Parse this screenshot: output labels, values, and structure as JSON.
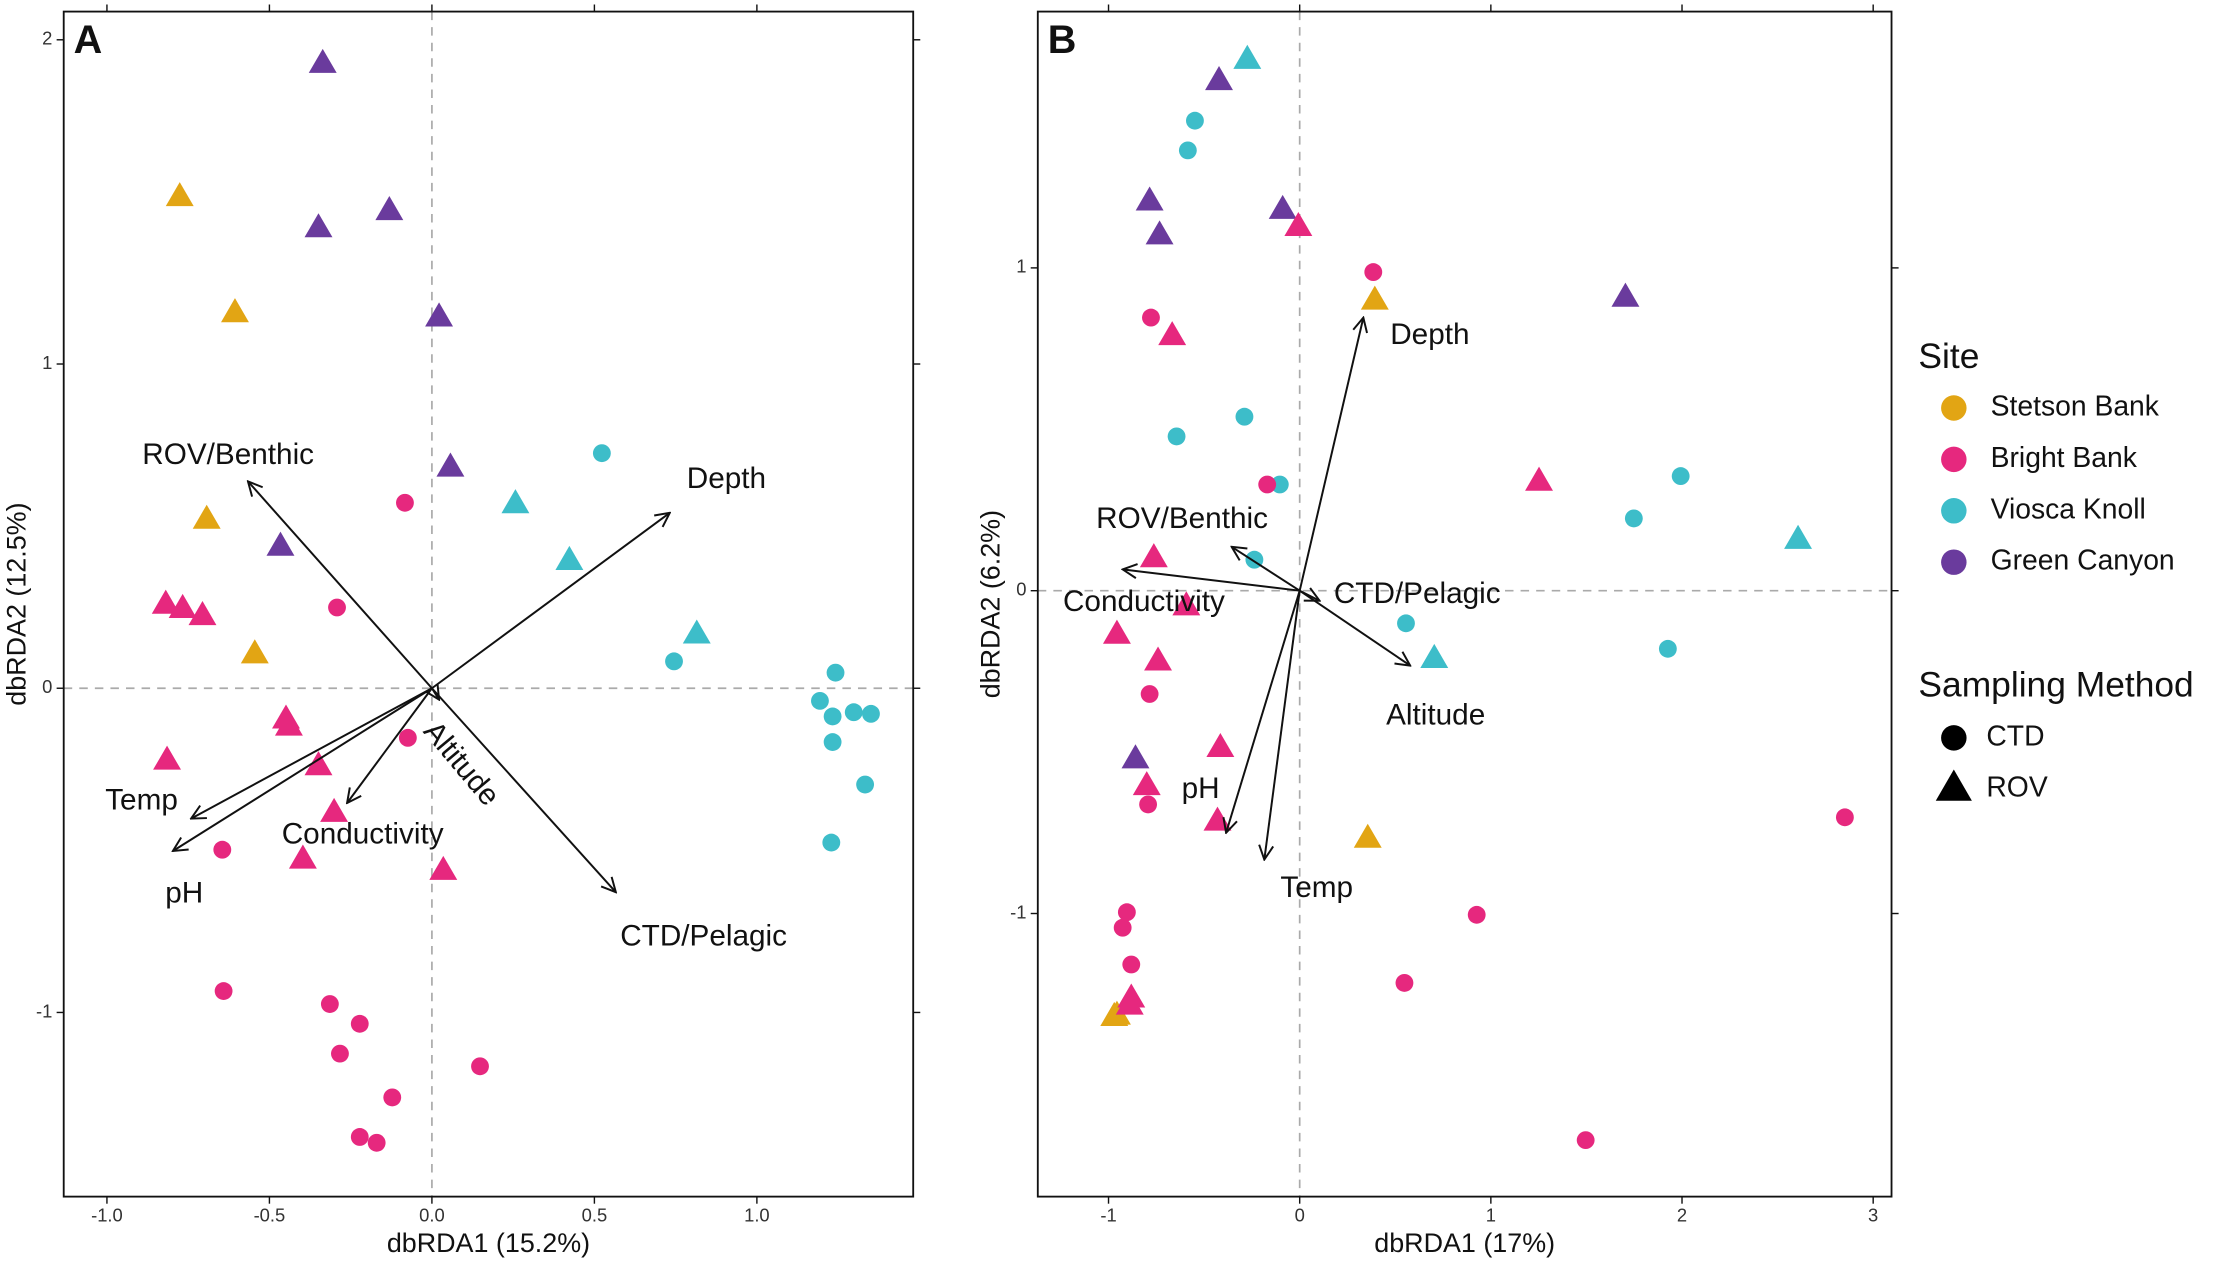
{
  "legend": {
    "title": "Site",
    "items": [
      "Stetson Bank",
      "Bright Bank",
      "Viosca Knoll",
      "Green Canyon"
    ],
    "colors": [
      "#e2a514",
      "#e6287e",
      "#3dbdc9",
      "#6a3b9d"
    ]
  },
  "shape_legend": {
    "title": "Sampling Method",
    "items": [
      "CTD",
      "ROV"
    ],
    "markers": [
      "circle",
      "triangle"
    ]
  },
  "chart_data": [
    {
      "type": "biplot",
      "panel": "A",
      "x_label": "dbRDA1 (15.2%)",
      "y_label": "dbRDA2 (12.5%)",
      "xlim": [
        -1.133,
        1.481
      ],
      "ylim": [
        -1.568,
        2.087
      ],
      "xticks": [
        {
          "value": -1.0,
          "label": "-1.0"
        },
        -0.5,
        {
          "value": 0.0,
          "label": "0.0"
        },
        0.5,
        {
          "value": 1.0,
          "label": "1.0"
        }
      ],
      "yticks": [
        -1,
        0,
        1,
        2
      ],
      "series": [
        {
          "color": "#e2a514",
          "marker": "triangle",
          "x": [
            -0.776,
            -0.606,
            -0.693,
            -0.545
          ],
          "values": [
            1.515,
            1.157,
            0.52,
            0.105
          ]
        },
        {
          "color": "#6a3b9d",
          "marker": "triangle",
          "x": [
            -0.336,
            -0.349,
            -0.131,
            0.022,
            0.057,
            -0.466
          ],
          "values": [
            1.926,
            1.419,
            1.472,
            1.144,
            0.681,
            0.437
          ]
        },
        {
          "color": "#3dbdc9",
          "marker": "circle",
          "x": [
            0.523,
            0.745,
            1.242,
            1.194,
            1.233,
            1.298,
            1.351,
            1.233,
            1.333,
            1.229
          ],
          "values": [
            0.725,
            0.083,
            0.048,
            -0.039,
            -0.087,
            -0.074,
            -0.079,
            -0.166,
            -0.297,
            -0.476
          ]
        },
        {
          "color": "#3dbdc9",
          "marker": "triangle",
          "x": [
            0.257,
            0.423,
            0.815
          ],
          "values": [
            0.568,
            0.393,
            0.166
          ]
        },
        {
          "color": "#e6287e",
          "marker": "circle",
          "x": [
            -0.083,
            -0.292,
            -0.074,
            -0.645,
            -0.641,
            -0.314,
            -0.222,
            -0.283,
            0.148,
            -0.122,
            -0.222,
            -0.17
          ],
          "values": [
            0.572,
            0.249,
            -0.153,
            -0.498,
            -0.934,
            -0.974,
            -1.035,
            -1.127,
            -1.166,
            -1.262,
            -1.384,
            -1.402
          ]
        },
        {
          "color": "#e6287e",
          "marker": "triangle",
          "x": [
            -0.819,
            -0.767,
            -0.706,
            -0.449,
            -0.44,
            -0.815,
            -0.349,
            -0.301,
            -0.397,
            0.035
          ],
          "values": [
            0.258,
            0.245,
            0.223,
            -0.096,
            -0.118,
            -0.223,
            -0.24,
            -0.384,
            -0.528,
            -0.563
          ]
        }
      ],
      "arrows": [
        {
          "label": "ROV/Benthic",
          "x": -0.566,
          "y": 0.638
        },
        {
          "label": "Depth",
          "x": 0.732,
          "y": 0.541
        },
        {
          "label": "Temp",
          "x": -0.741,
          "y": -0.402
        },
        {
          "label": "pH",
          "x": -0.797,
          "y": -0.502
        },
        {
          "label": "Conductivity",
          "x": -0.261,
          "y": -0.354
        },
        {
          "label": "Altitude",
          "x": 0.022,
          "y": -0.035
        },
        {
          "label": "CTD/Pelagic",
          "x": 0.566,
          "y": -0.629
        }
      ]
    },
    {
      "type": "biplot",
      "panel": "B",
      "x_label": "dbRDA1 (17%)",
      "y_label": "dbRDA2 (6.2%)",
      "xlim": [
        -1.37,
        3.096
      ],
      "ylim": [
        -1.877,
        1.794
      ],
      "xticks": [
        -1,
        0,
        1,
        2,
        3
      ],
      "yticks": [
        -1,
        0,
        1
      ],
      "series": [
        {
          "color": "#e2a514",
          "marker": "triangle",
          "x": [
            0.393,
            0.356,
            -0.956,
            -0.97
          ],
          "values": [
            0.899,
            -0.768,
            -1.316,
            -1.32
          ]
        },
        {
          "color": "#6a3b9d",
          "marker": "triangle",
          "x": [
            -0.422,
            -0.785,
            -0.733,
            -0.089,
            1.704,
            -0.859
          ],
          "values": [
            1.579,
            1.206,
            1.101,
            1.18,
            0.908,
            -0.522
          ]
        },
        {
          "color": "#3dbdc9",
          "marker": "circle",
          "x": [
            -0.548,
            -0.585,
            -0.289,
            -0.644,
            -0.104,
            -0.237,
            0.556,
            1.993,
            1.748,
            1.926
          ],
          "values": [
            1.456,
            1.364,
            0.539,
            0.478,
            0.329,
            0.096,
            -0.101,
            0.355,
            0.224,
            -0.18
          ]
        },
        {
          "color": "#3dbdc9",
          "marker": "triangle",
          "x": [
            -0.274,
            2.607,
            0.704
          ],
          "values": [
            1.645,
            0.158,
            -0.211
          ]
        },
        {
          "color": "#e6287e",
          "marker": "circle",
          "x": [
            0.385,
            -0.778,
            -0.17,
            -0.785,
            -0.793,
            -0.904,
            -0.926,
            -0.881,
            0.926,
            0.548,
            2.852,
            1.496
          ],
          "values": [
            0.987,
            0.846,
            0.329,
            -0.32,
            -0.662,
            -0.996,
            -1.044,
            -1.158,
            -1.004,
            -1.215,
            -0.702,
            -1.702
          ]
        },
        {
          "color": "#e6287e",
          "marker": "triangle",
          "x": [
            -0.007,
            -0.667,
            1.252,
            -0.763,
            -0.593,
            -0.956,
            -0.741,
            -0.415,
            -0.8,
            -0.43,
            -0.881,
            -0.889
          ],
          "values": [
            1.127,
            0.789,
            0.338,
            0.101,
            -0.048,
            -0.136,
            -0.219,
            -0.487,
            -0.605,
            -0.715,
            -1.263,
            -1.285
          ]
        }
      ],
      "arrows": [
        {
          "label": "Depth",
          "x": 0.333,
          "y": 0.846
        },
        {
          "label": "ROV/Benthic",
          "x": -0.356,
          "y": 0.136
        },
        {
          "label": "Conductivity",
          "x": -0.926,
          "y": 0.066
        },
        {
          "label": "CTD/Pelagic",
          "x": 0.104,
          "y": -0.031
        },
        {
          "label": "Altitude",
          "x": 0.578,
          "y": -0.232
        },
        {
          "label": "pH",
          "x": -0.385,
          "y": -0.75
        },
        {
          "label": "Temp",
          "x": -0.185,
          "y": -0.833
        }
      ]
    }
  ]
}
